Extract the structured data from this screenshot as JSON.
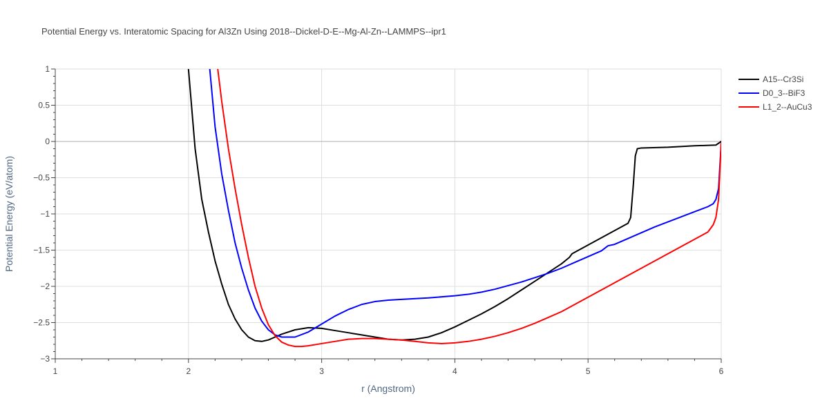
{
  "chart_data": {
    "type": "line",
    "title": "Potential Energy vs. Interatomic Spacing for Al3Zn Using 2018--Dickel-D-E--Mg-Al-Zn--LAMMPS--ipr1",
    "xlabel": "r (Angstrom)",
    "ylabel": "Potential Energy (eV/atom)",
    "xlim": [
      1,
      6
    ],
    "ylim": [
      -3,
      1
    ],
    "xticks": [
      1,
      2,
      3,
      4,
      5,
      6
    ],
    "xtick_labels": [
      "1",
      "2",
      "3",
      "4",
      "5",
      "6"
    ],
    "yticks": [
      1,
      0.5,
      0,
      -0.5,
      -1,
      -1.5,
      -2,
      -2.5,
      -3
    ],
    "ytick_labels": [
      "1",
      "0.5",
      "0",
      "−0.5",
      "−1",
      "−1.5",
      "−2",
      "−2.5",
      "−3"
    ],
    "grid": true,
    "legend_position": "top-right",
    "series": [
      {
        "name": "A15--Cr3Si",
        "color": "#000000",
        "x": [
          2.0,
          2.05,
          2.1,
          2.15,
          2.2,
          2.25,
          2.3,
          2.35,
          2.4,
          2.45,
          2.5,
          2.55,
          2.6,
          2.65,
          2.7,
          2.8,
          2.9,
          3.0,
          3.1,
          3.2,
          3.3,
          3.4,
          3.5,
          3.6,
          3.7,
          3.8,
          3.9,
          4.0,
          4.1,
          4.2,
          4.3,
          4.4,
          4.5,
          4.6,
          4.7,
          4.8,
          4.86,
          4.88,
          5.0,
          5.1,
          5.2,
          5.3,
          5.32,
          5.34,
          5.355,
          5.37,
          5.4,
          5.6,
          5.8,
          5.96,
          6.0
        ],
        "y": [
          1.0,
          -0.1,
          -0.8,
          -1.25,
          -1.65,
          -1.97,
          -2.25,
          -2.45,
          -2.6,
          -2.7,
          -2.75,
          -2.76,
          -2.74,
          -2.7,
          -2.66,
          -2.6,
          -2.57,
          -2.58,
          -2.61,
          -2.64,
          -2.67,
          -2.7,
          -2.73,
          -2.74,
          -2.73,
          -2.7,
          -2.64,
          -2.56,
          -2.47,
          -2.38,
          -2.28,
          -2.17,
          -2.05,
          -1.93,
          -1.81,
          -1.69,
          -1.6,
          -1.55,
          -1.43,
          -1.33,
          -1.23,
          -1.13,
          -1.05,
          -0.6,
          -0.2,
          -0.1,
          -0.09,
          -0.08,
          -0.06,
          -0.05,
          0.0
        ]
      },
      {
        "name": "D0_3--BiF3",
        "color": "#0000ff",
        "x": [
          2.16,
          2.2,
          2.25,
          2.3,
          2.35,
          2.4,
          2.45,
          2.5,
          2.55,
          2.6,
          2.65,
          2.7,
          2.8,
          2.9,
          3.0,
          3.1,
          3.2,
          3.3,
          3.4,
          3.5,
          3.6,
          3.8,
          4.0,
          4.1,
          4.2,
          4.3,
          4.4,
          4.5,
          4.6,
          4.7,
          4.8,
          4.9,
          5.0,
          5.1,
          5.15,
          5.2,
          5.3,
          5.4,
          5.5,
          5.6,
          5.7,
          5.8,
          5.9,
          5.94,
          5.96,
          5.98,
          6.0
        ],
        "y": [
          1.0,
          0.2,
          -0.45,
          -0.95,
          -1.4,
          -1.75,
          -2.05,
          -2.3,
          -2.48,
          -2.6,
          -2.67,
          -2.7,
          -2.7,
          -2.63,
          -2.52,
          -2.41,
          -2.32,
          -2.25,
          -2.21,
          -2.19,
          -2.18,
          -2.16,
          -2.13,
          -2.11,
          -2.08,
          -2.04,
          -1.99,
          -1.94,
          -1.88,
          -1.82,
          -1.75,
          -1.67,
          -1.59,
          -1.51,
          -1.44,
          -1.42,
          -1.34,
          -1.26,
          -1.18,
          -1.11,
          -1.04,
          -0.97,
          -0.9,
          -0.86,
          -0.8,
          -0.65,
          -0.02
        ]
      },
      {
        "name": "L1_2--AuCu3",
        "color": "#ff0000",
        "x": [
          2.22,
          2.25,
          2.3,
          2.35,
          2.4,
          2.45,
          2.5,
          2.55,
          2.6,
          2.65,
          2.7,
          2.75,
          2.8,
          2.85,
          2.9,
          3.0,
          3.1,
          3.2,
          3.3,
          3.4,
          3.5,
          3.6,
          3.7,
          3.8,
          3.9,
          4.0,
          4.1,
          4.2,
          4.3,
          4.4,
          4.5,
          4.6,
          4.7,
          4.8,
          4.9,
          5.0,
          5.1,
          5.2,
          5.3,
          5.4,
          5.5,
          5.6,
          5.7,
          5.8,
          5.9,
          5.94,
          5.96,
          5.98,
          6.0
        ],
        "y": [
          1.0,
          0.55,
          -0.1,
          -0.65,
          -1.15,
          -1.6,
          -2.0,
          -2.3,
          -2.53,
          -2.68,
          -2.77,
          -2.81,
          -2.83,
          -2.83,
          -2.82,
          -2.79,
          -2.76,
          -2.73,
          -2.72,
          -2.72,
          -2.73,
          -2.74,
          -2.76,
          -2.78,
          -2.79,
          -2.78,
          -2.76,
          -2.73,
          -2.69,
          -2.64,
          -2.58,
          -2.51,
          -2.43,
          -2.35,
          -2.25,
          -2.15,
          -2.05,
          -1.95,
          -1.85,
          -1.75,
          -1.65,
          -1.55,
          -1.45,
          -1.35,
          -1.25,
          -1.15,
          -1.05,
          -0.8,
          -0.02
        ]
      }
    ]
  }
}
